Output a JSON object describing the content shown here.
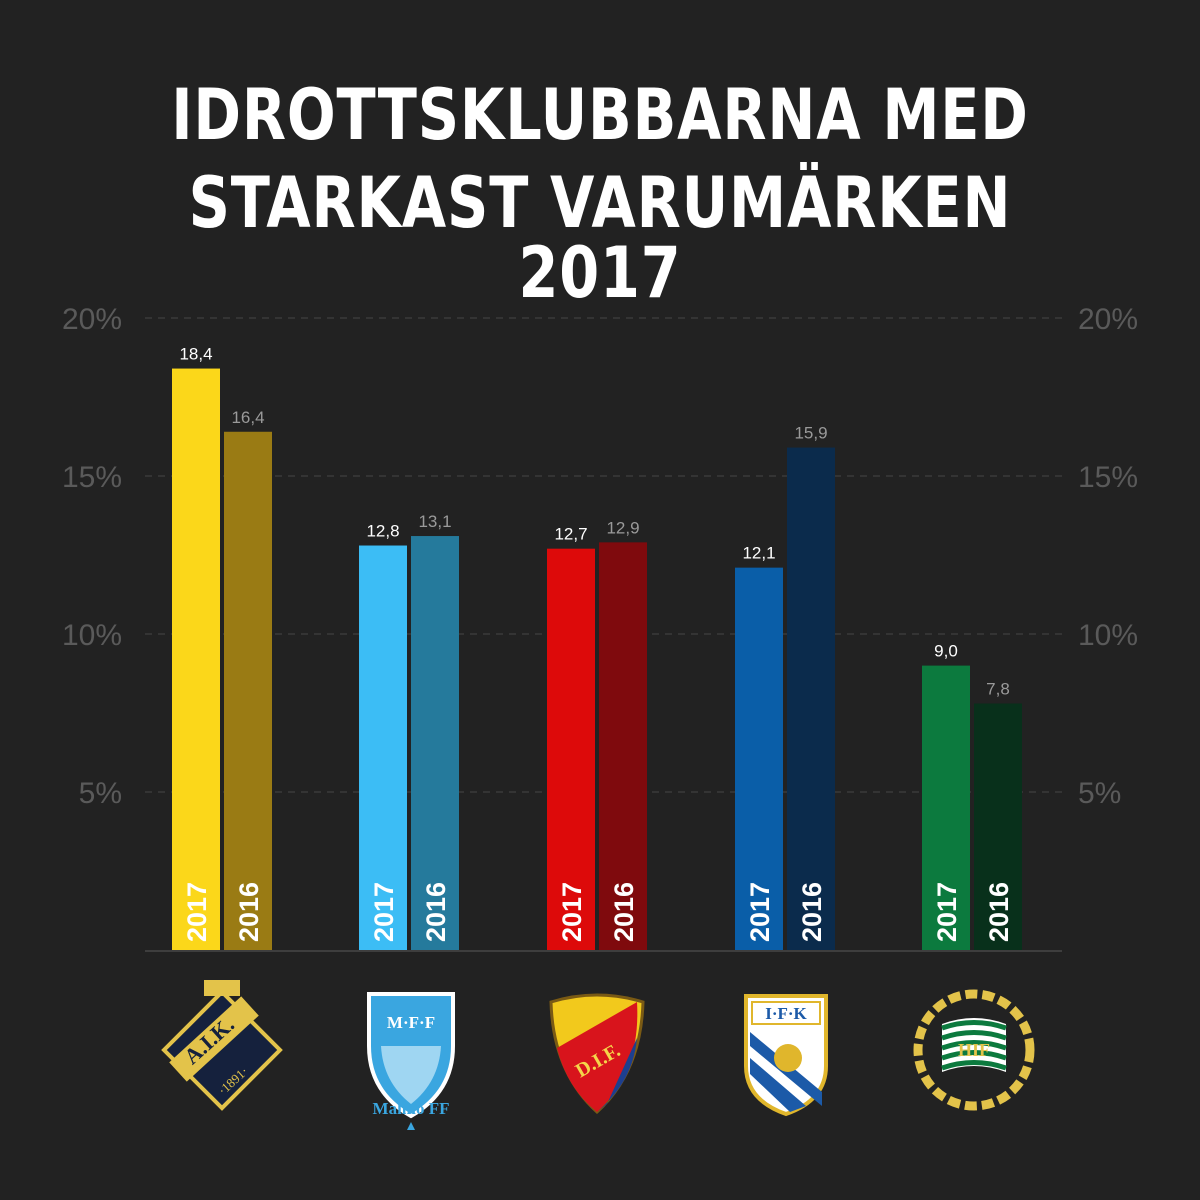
{
  "title_lines": [
    "IDROTTSKLUBBARNA MED",
    "STARKAST VARUMÄRKEN 2017"
  ],
  "chart_data": {
    "type": "bar",
    "title": "IDROTTSKLUBBARNA MED STARKAST VARUMÄRKEN 2017",
    "ylim": [
      0,
      20
    ],
    "y_ticks": [
      5,
      10,
      15,
      20
    ],
    "y_tick_labels": [
      "5%",
      "10%",
      "15%",
      "20%"
    ],
    "grid": true,
    "categories": [
      "AIK",
      "Malmö FF",
      "DIF",
      "IFK",
      "HIF"
    ],
    "series": [
      {
        "name": "2017",
        "values": [
          18.4,
          12.8,
          12.7,
          12.1,
          9.0
        ]
      },
      {
        "name": "2016",
        "values": [
          16.4,
          13.1,
          12.9,
          15.9,
          7.8
        ]
      }
    ],
    "value_labels": {
      "2017": [
        "18,4",
        "12,8",
        "12,7",
        "12,1",
        "9,0"
      ],
      "2016": [
        "16,4",
        "13,1",
        "12,9",
        "15,9",
        "7,8"
      ]
    },
    "colors": {
      "2017": [
        "#fbd71a",
        "#3cbdf5",
        "#dd0a0a",
        "#0a5ea8",
        "#0c7a3e"
      ],
      "2016": [
        "#9a7b14",
        "#257a9c",
        "#7f0a0d",
        "#0b2b4c",
        "#08301b"
      ]
    }
  },
  "logos": [
    {
      "name": "aik-logo",
      "text": "A.I.K.",
      "year": "·1891·",
      "colors": [
        "#15213d",
        "#e3c34a"
      ]
    },
    {
      "name": "malmo-ff-logo",
      "text": "M·F·F",
      "caption": "Malmö FF",
      "colors": [
        "#3aa6e0",
        "#ffffff"
      ]
    },
    {
      "name": "dif-logo",
      "text": "D.I.F.",
      "colors": [
        "#f2c91c",
        "#d8141c",
        "#1d3f8f"
      ]
    },
    {
      "name": "ifk-logo",
      "text": "I·F·K",
      "colors": [
        "#1c5aa8",
        "#ffffff",
        "#e0b62c"
      ]
    },
    {
      "name": "hif-logo",
      "text": "HIF",
      "colors": [
        "#0c7a3e",
        "#ffffff",
        "#e3c34a"
      ]
    }
  ]
}
